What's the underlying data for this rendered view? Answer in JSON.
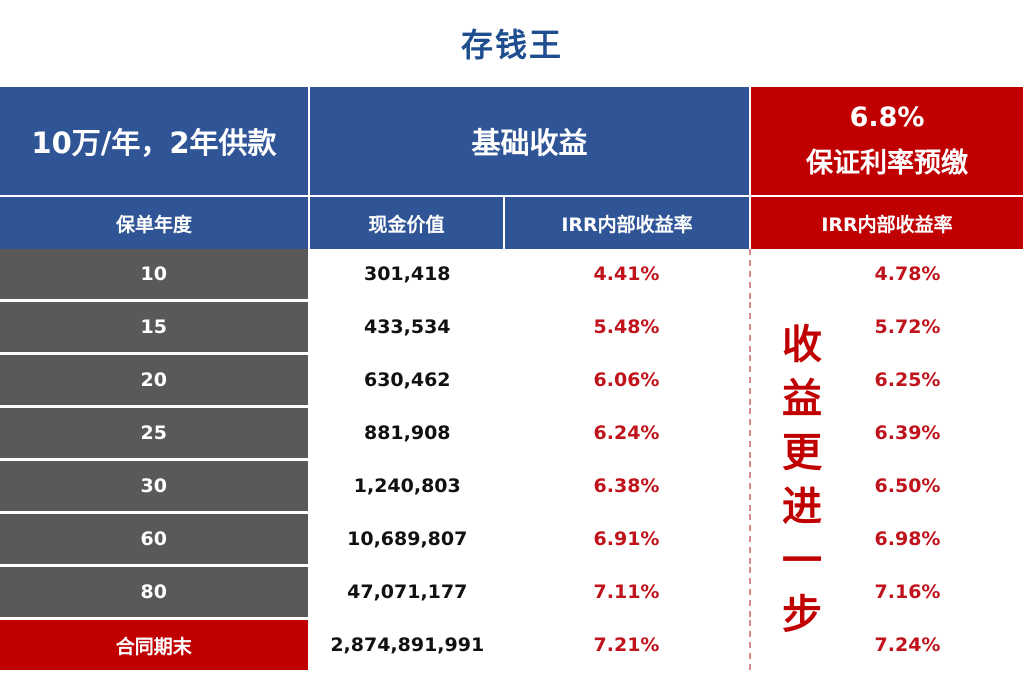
{
  "title": "存钱王",
  "header": {
    "plan": "10万/年，2年供款",
    "basic": "基础收益",
    "rate": "6.8%",
    "rate_label": "保证利率预缴"
  },
  "columns": {
    "year": "保单年度",
    "cash": "现金价值",
    "irr": "IRR内部收益率",
    "irr2": "IRR内部收益率"
  },
  "rows": [
    {
      "year": "10",
      "cash": "301,418",
      "irr": "4.41%",
      "irr2": "4.78%"
    },
    {
      "year": "15",
      "cash": "433,534",
      "irr": "5.48%",
      "irr2": "5.72%"
    },
    {
      "year": "20",
      "cash": "630,462",
      "irr": "6.06%",
      "irr2": "6.25%"
    },
    {
      "year": "25",
      "cash": "881,908",
      "irr": "6.24%",
      "irr2": "6.39%"
    },
    {
      "year": "30",
      "cash": "1,240,803",
      "irr": "6.38%",
      "irr2": "6.50%"
    },
    {
      "year": "60",
      "cash": "10,689,807",
      "irr": "6.91%",
      "irr2": "6.98%"
    },
    {
      "year": "80",
      "cash": "47,071,177",
      "irr": "7.11%",
      "irr2": "7.16%"
    },
    {
      "year": "合同期末",
      "cash": "2,874,891,991",
      "irr": "7.21%",
      "irr2": "7.24%"
    }
  ],
  "side_text": [
    "收",
    "益",
    "更",
    "进",
    "一",
    "步"
  ],
  "colors": {
    "blue": "#2f5597",
    "red": "#c00000",
    "gray": "#595959"
  }
}
